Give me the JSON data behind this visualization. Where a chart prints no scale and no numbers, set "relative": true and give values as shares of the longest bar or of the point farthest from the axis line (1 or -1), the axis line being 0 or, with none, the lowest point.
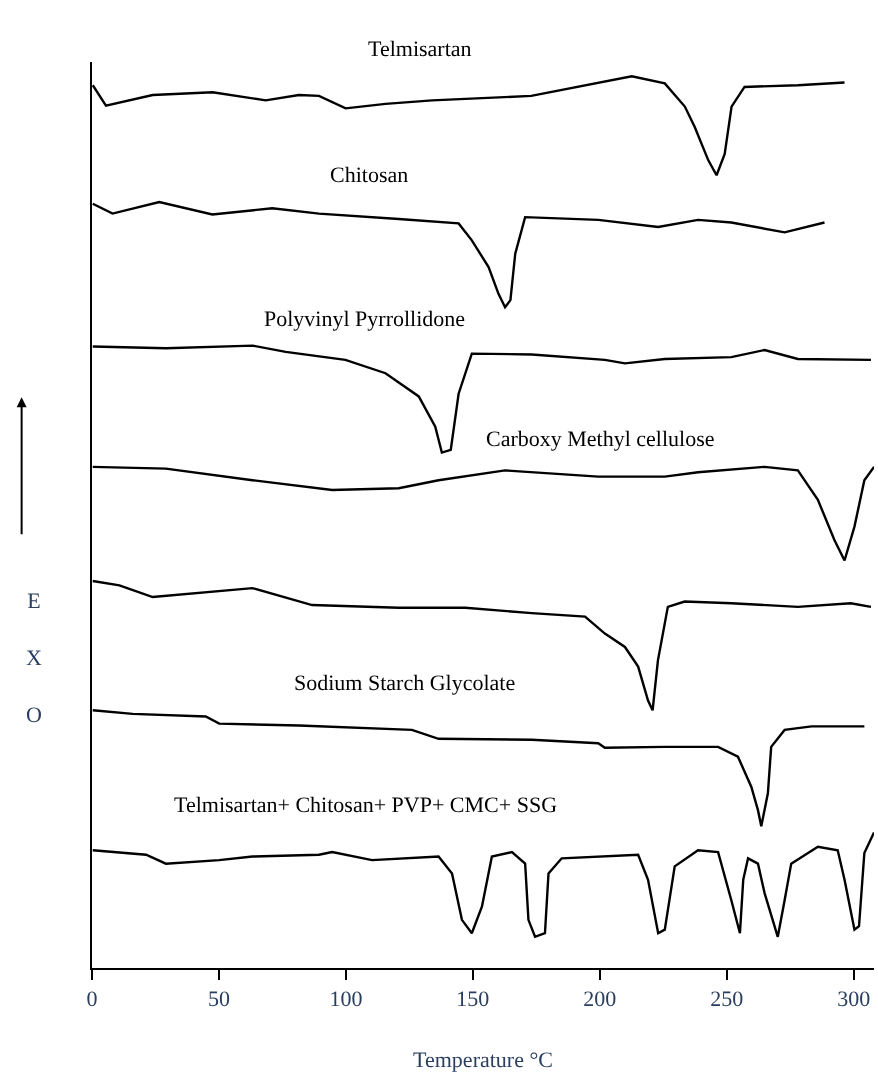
{
  "chart_data": {
    "type": "line",
    "relative": true,
    "xlabel": "Temperature °C",
    "ylabel": "EXO",
    "xlim": [
      0,
      308
    ],
    "xticks": [
      0,
      50,
      100,
      150,
      200,
      250,
      300
    ],
    "legend": false,
    "marker": "none",
    "line_style": "solid",
    "series": [
      {
        "name": "Telmisartan",
        "color": "#000000",
        "x": [
          0.3,
          5.5,
          23.9,
          47.5,
          68.4,
          81.5,
          89.4,
          99.9,
          115.6,
          134,
          173,
          212.6,
          225.6,
          233.5,
          237.4,
          242.7,
          246,
          249.2,
          251.9,
          257,
          278,
          296.4
        ],
        "values": [
          0.99,
          0.967,
          0.979,
          0.982,
          0.973,
          0.979,
          0.978,
          0.964,
          0.969,
          0.973,
          0.978,
          1.0,
          0.992,
          0.966,
          0.943,
          0.906,
          0.889,
          0.913,
          0.966,
          0.988,
          0.99,
          0.993
        ]
      },
      {
        "name": "Chitosan",
        "color": "#000000",
        "x": [
          0.3,
          8.1,
          26.5,
          47.4,
          71,
          89.4,
          120.8,
          144.4,
          149.6,
          156.2,
          160.1,
          162.7,
          164.8,
          166.7,
          170.6,
          199.4,
          223,
          238.7,
          251.8,
          272.8,
          288.5
        ],
        "values": [
          0.857,
          0.846,
          0.859,
          0.845,
          0.852,
          0.846,
          0.84,
          0.835,
          0.816,
          0.786,
          0.756,
          0.741,
          0.749,
          0.801,
          0.842,
          0.839,
          0.831,
          0.839,
          0.836,
          0.825,
          0.836
        ]
      },
      {
        "name": "Polyvinyl Pyrrollidone",
        "color": "#000000",
        "x": [
          0.3,
          29.1,
          63.2,
          76.3,
          99.8,
          115.6,
          128.7,
          135.2,
          137.8,
          141.3,
          144.4,
          149.6,
          173.2,
          202,
          209.9,
          225.6,
          251.8,
          264.9,
          278,
          306.8
        ],
        "values": [
          0.697,
          0.695,
          0.698,
          0.691,
          0.682,
          0.667,
          0.641,
          0.607,
          0.578,
          0.581,
          0.644,
          0.689,
          0.688,
          0.682,
          0.678,
          0.683,
          0.685,
          0.693,
          0.683,
          0.682
        ]
      },
      {
        "name": "Carboxy Methyl cellulose",
        "color": "#000000",
        "x": [
          0.3,
          29.1,
          63.2,
          94.6,
          120.8,
          136.5,
          162.7,
          199.4,
          225.6,
          238.7,
          264.9,
          278,
          285.9,
          292.4,
          296.4,
          300.3,
          304.2,
          308
        ],
        "values": [
          0.562,
          0.56,
          0.547,
          0.536,
          0.538,
          0.547,
          0.558,
          0.551,
          0.551,
          0.556,
          0.562,
          0.558,
          0.525,
          0.48,
          0.457,
          0.495,
          0.547,
          0.562
        ]
      },
      {
        "color": "#000000",
        "x": [
          0.3,
          10.8,
          23.9,
          63.2,
          86.7,
          120.8,
          147,
          173.2,
          194.2,
          202,
          209.9,
          215.1,
          219,
          220.8,
          222.9,
          226.8,
          233.4,
          251.8,
          278,
          298.9,
          306.8
        ],
        "values": [
          0.434,
          0.429,
          0.416,
          0.426,
          0.407,
          0.404,
          0.404,
          0.398,
          0.394,
          0.375,
          0.36,
          0.338,
          0.3,
          0.289,
          0.345,
          0.405,
          0.411,
          0.409,
          0.405,
          0.409,
          0.405
        ]
      },
      {
        "name": "Sodium Starch Glycolate",
        "color": "#000000",
        "x": [
          0.3,
          16,
          44.8,
          50.1,
          81.5,
          126,
          136.5,
          173.2,
          199.4,
          202,
          225.6,
          246.6,
          254.4,
          259.7,
          262.3,
          263.6,
          266.2,
          267.5,
          272.8,
          283.4,
          304.2
        ],
        "values": [
          0.289,
          0.285,
          0.282,
          0.274,
          0.272,
          0.267,
          0.257,
          0.256,
          0.252,
          0.247,
          0.248,
          0.248,
          0.237,
          0.203,
          0.177,
          0.159,
          0.196,
          0.248,
          0.267,
          0.271,
          0.271
        ]
      },
      {
        "name": "Telmisartan+ Chitosan+ PVP+ CMC+ SSG",
        "color": "#000000",
        "x": [
          0.3,
          21.3,
          29.1,
          50.1,
          63.2,
          89.4,
          94.6,
          110.3,
          136.5,
          141.8,
          145.7,
          149.6,
          153.6,
          157.5,
          165.4,
          170.6,
          171.9,
          174.5,
          178.4,
          179.8,
          185,
          215.1,
          219,
          223,
          225.6,
          229.5,
          238.7,
          246.6,
          251.8,
          255.2,
          256.5,
          258.4,
          262.3,
          264.9,
          270.1,
          272.8,
          275.4,
          285.9,
          293.7,
          296.4,
          300.3,
          302.1,
          304.2,
          308
        ],
        "values": [
          0.132,
          0.127,
          0.117,
          0.121,
          0.125,
          0.127,
          0.13,
          0.121,
          0.125,
          0.106,
          0.054,
          0.039,
          0.069,
          0.125,
          0.13,
          0.117,
          0.054,
          0.035,
          0.039,
          0.106,
          0.123,
          0.127,
          0.099,
          0.039,
          0.043,
          0.114,
          0.132,
          0.13,
          0.076,
          0.039,
          0.099,
          0.123,
          0.117,
          0.084,
          0.035,
          0.076,
          0.117,
          0.136,
          0.132,
          0.099,
          0.043,
          0.047,
          0.129,
          0.152
        ]
      }
    ]
  }
}
